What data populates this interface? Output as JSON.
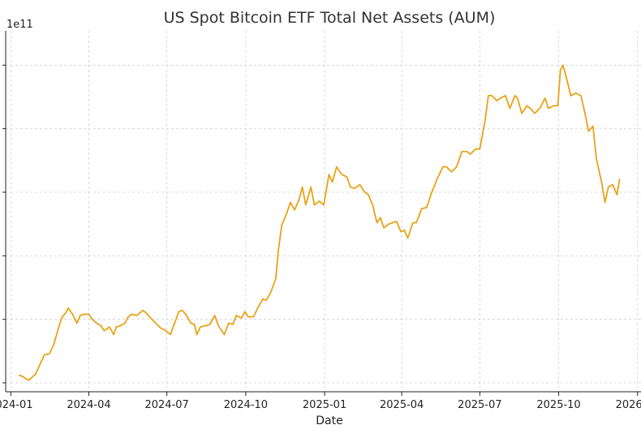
{
  "chart_data": {
    "type": "line",
    "title": "US Spot Bitcoin ETF Total Net Assets (AUM)",
    "xlabel": "Date",
    "ylabel": "",
    "y_offset_label": "1e11",
    "x_ticks": [
      "2024-01",
      "2024-04",
      "2024-07",
      "2024-10",
      "2025-01",
      "2025-04",
      "2025-07",
      "2025-10",
      "2026-01"
    ],
    "x_tick_labels": [
      "2024-01",
      "2024-04",
      "2024-07",
      "2024-10",
      "2025-01",
      "2025-04",
      "2025-07",
      "2025-10",
      "2026-01"
    ],
    "xlim": [
      "2023-12-26",
      "2026-01-05"
    ],
    "ylim": [
      0.215,
      1.635
    ],
    "y_ticks": [
      0.25,
      0.5,
      0.75,
      1.0,
      1.25,
      1.5
    ],
    "grid": true,
    "color": "#E8A317",
    "series": [
      {
        "name": "",
        "x": [
          "2024-01-11",
          "2024-01-15",
          "2024-01-18",
          "2024-01-22",
          "2024-01-25",
          "2024-01-30",
          "2024-02-05",
          "2024-02-09",
          "2024-02-15",
          "2024-02-20",
          "2024-02-26",
          "2024-03-01",
          "2024-03-05",
          "2024-03-08",
          "2024-03-13",
          "2024-03-18",
          "2024-03-22",
          "2024-03-27",
          "2024-04-01",
          "2024-04-05",
          "2024-04-10",
          "2024-04-15",
          "2024-04-19",
          "2024-04-25",
          "2024-04-30",
          "2024-05-03",
          "2024-05-08",
          "2024-05-13",
          "2024-05-17",
          "2024-05-21",
          "2024-05-27",
          "2024-06-03",
          "2024-06-07",
          "2024-06-12",
          "2024-06-18",
          "2024-06-24",
          "2024-06-28",
          "2024-07-05",
          "2024-07-10",
          "2024-07-15",
          "2024-07-19",
          "2024-07-24",
          "2024-07-29",
          "2024-08-02",
          "2024-08-05",
          "2024-08-09",
          "2024-08-15",
          "2024-08-20",
          "2024-08-26",
          "2024-08-30",
          "2024-09-06",
          "2024-09-11",
          "2024-09-16",
          "2024-09-20",
          "2024-09-26",
          "2024-09-30",
          "2024-10-04",
          "2024-10-10",
          "2024-10-15",
          "2024-10-21",
          "2024-10-25",
          "2024-10-30",
          "2024-11-05",
          "2024-11-08",
          "2024-11-12",
          "2024-11-18",
          "2024-11-22",
          "2024-11-27",
          "2024-12-02",
          "2024-12-06",
          "2024-12-10",
          "2024-12-16",
          "2024-12-20",
          "2024-12-26",
          "2024-12-31",
          "2025-01-06",
          "2025-01-10",
          "2025-01-15",
          "2025-01-21",
          "2025-01-27",
          "2025-01-31",
          "2025-02-05",
          "2025-02-11",
          "2025-02-17",
          "2025-02-21",
          "2025-02-26",
          "2025-03-03",
          "2025-03-07",
          "2025-03-11",
          "2025-03-17",
          "2025-03-21",
          "2025-03-26",
          "2025-03-31",
          "2025-04-04",
          "2025-04-08",
          "2025-04-14",
          "2025-04-18",
          "2025-04-24",
          "2025-04-30",
          "2025-05-06",
          "2025-05-12",
          "2025-05-19",
          "2025-05-23",
          "2025-05-29",
          "2025-06-04",
          "2025-06-10",
          "2025-06-16",
          "2025-06-20",
          "2025-06-26",
          "2025-07-01",
          "2025-07-07",
          "2025-07-11",
          "2025-07-15",
          "2025-07-21",
          "2025-07-25",
          "2025-07-31",
          "2025-08-05",
          "2025-08-11",
          "2025-08-14",
          "2025-08-19",
          "2025-08-25",
          "2025-08-29",
          "2025-09-03",
          "2025-09-09",
          "2025-09-15",
          "2025-09-19",
          "2025-09-25",
          "2025-09-30",
          "2025-10-03",
          "2025-10-06",
          "2025-10-10",
          "2025-10-15",
          "2025-10-21",
          "2025-10-27",
          "2025-10-31",
          "2025-11-05",
          "2025-11-10",
          "2025-11-14",
          "2025-11-20",
          "2025-11-24",
          "2025-11-28",
          "2025-12-03",
          "2025-12-08",
          "2025-12-11"
        ],
        "values": [
          0.28,
          0.275,
          0.268,
          0.26,
          0.27,
          0.285,
          0.33,
          0.36,
          0.365,
          0.4,
          0.47,
          0.51,
          0.525,
          0.545,
          0.52,
          0.485,
          0.515,
          0.52,
          0.52,
          0.5,
          0.485,
          0.475,
          0.455,
          0.47,
          0.44,
          0.47,
          0.475,
          0.485,
          0.51,
          0.52,
          0.515,
          0.535,
          0.525,
          0.505,
          0.485,
          0.465,
          0.46,
          0.44,
          0.485,
          0.53,
          0.535,
          0.515,
          0.485,
          0.48,
          0.44,
          0.47,
          0.475,
          0.48,
          0.515,
          0.475,
          0.44,
          0.485,
          0.48,
          0.515,
          0.505,
          0.53,
          0.51,
          0.51,
          0.545,
          0.58,
          0.575,
          0.605,
          0.66,
          0.77,
          0.87,
          0.92,
          0.96,
          0.93,
          0.97,
          1.02,
          0.95,
          1.02,
          0.95,
          0.965,
          0.95,
          1.07,
          1.04,
          1.1,
          1.07,
          1.06,
          1.02,
          1.015,
          1.03,
          1.0,
          0.99,
          0.95,
          0.88,
          0.9,
          0.86,
          0.875,
          0.88,
          0.885,
          0.845,
          0.85,
          0.82,
          0.88,
          0.88,
          0.935,
          0.94,
          1.0,
          1.05,
          1.1,
          1.1,
          1.08,
          1.1,
          1.16,
          1.16,
          1.15,
          1.17,
          1.17,
          1.28,
          1.38,
          1.38,
          1.36,
          1.37,
          1.38,
          1.33,
          1.38,
          1.37,
          1.31,
          1.34,
          1.33,
          1.31,
          1.33,
          1.37,
          1.33,
          1.34,
          1.34,
          1.48,
          1.5,
          1.45,
          1.38,
          1.39,
          1.38,
          1.32,
          1.24,
          1.26,
          1.13,
          1.04,
          0.96,
          1.02,
          1.03,
          0.99,
          1.05
        ]
      }
    ]
  }
}
